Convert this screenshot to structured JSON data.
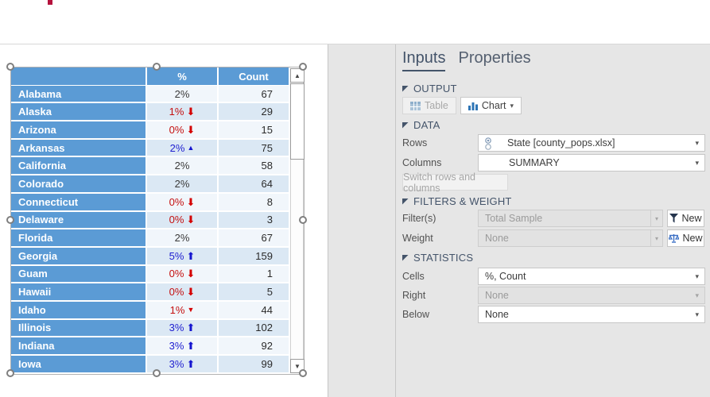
{
  "table": {
    "header": {
      "percent": "%",
      "count": "Count"
    },
    "sig_glyphs": {
      "up-big": "⬆",
      "down-big": "⬇",
      "up-small": "▲",
      "down-small": "▼"
    },
    "rows": [
      {
        "state": "Alabama",
        "percent": "2%",
        "count": "67",
        "sig": "none"
      },
      {
        "state": "Alaska",
        "percent": "1%",
        "count": "29",
        "sig": "down-big"
      },
      {
        "state": "Arizona",
        "percent": "0%",
        "count": "15",
        "sig": "down-big"
      },
      {
        "state": "Arkansas",
        "percent": "2%",
        "count": "75",
        "sig": "up-small"
      },
      {
        "state": "California",
        "percent": "2%",
        "count": "58",
        "sig": "none"
      },
      {
        "state": "Colorado",
        "percent": "2%",
        "count": "64",
        "sig": "none"
      },
      {
        "state": "Connecticut",
        "percent": "0%",
        "count": "8",
        "sig": "down-big"
      },
      {
        "state": "Delaware",
        "percent": "0%",
        "count": "3",
        "sig": "down-big"
      },
      {
        "state": "Florida",
        "percent": "2%",
        "count": "67",
        "sig": "none"
      },
      {
        "state": "Georgia",
        "percent": "5%",
        "count": "159",
        "sig": "up-big"
      },
      {
        "state": "Guam",
        "percent": "0%",
        "count": "1",
        "sig": "down-big"
      },
      {
        "state": "Hawaii",
        "percent": "0%",
        "count": "5",
        "sig": "down-big"
      },
      {
        "state": "Idaho",
        "percent": "1%",
        "count": "44",
        "sig": "down-small"
      },
      {
        "state": "Illinois",
        "percent": "3%",
        "count": "102",
        "sig": "up-big"
      },
      {
        "state": "Indiana",
        "percent": "3%",
        "count": "92",
        "sig": "up-big"
      },
      {
        "state": "Iowa",
        "percent": "3%",
        "count": "99",
        "sig": "up-big"
      }
    ],
    "colors": {
      "header_bg": "#5b9bd5",
      "row_light": "#f1f6fb",
      "row_dark": "#dbe8f4",
      "sig_up": "#1414cf",
      "sig_down": "#d40000"
    }
  },
  "icons": {
    "chevron_down": "▾",
    "scroll_up": "▲",
    "scroll_down": "▼"
  },
  "panel": {
    "tabs": {
      "inputs": "Inputs",
      "properties": "Properties"
    },
    "output": {
      "title": "OUTPUT",
      "table_button": "Table",
      "chart_button": "Chart"
    },
    "data": {
      "title": "DATA",
      "rows_label": "Rows",
      "rows_value": "State [county_pops.xlsx]",
      "columns_label": "Columns",
      "columns_value": "SUMMARY",
      "switch_button": "Switch rows and columns"
    },
    "filters": {
      "title": "FILTERS & WEIGHT",
      "filter_label": "Filter(s)",
      "filter_value": "Total Sample",
      "filter_new": "New",
      "weight_label": "Weight",
      "weight_value": "None",
      "weight_new": "New"
    },
    "statistics": {
      "title": "STATISTICS",
      "cells_label": "Cells",
      "cells_value": "%, Count",
      "right_label": "Right",
      "right_value": "None",
      "below_label": "Below",
      "below_value": "None"
    }
  }
}
